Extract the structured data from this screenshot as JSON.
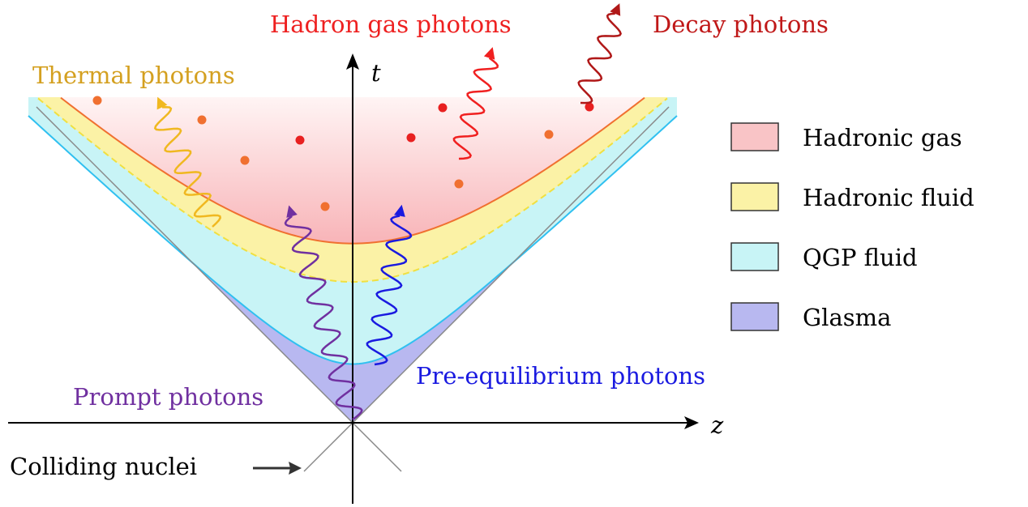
{
  "labels": {
    "thermal": "Thermal photons",
    "hadron_gas": "Hadron gas photons",
    "decay": "Decay photons",
    "prompt": "Prompt photons",
    "pre_equilibrium": "Pre-equilibrium photons",
    "colliding": "Colliding nuclei"
  },
  "axes": {
    "t": "t",
    "z": "z"
  },
  "legend": [
    "Hadronic gas",
    "Hadronic fluid",
    "QGP fluid",
    "Glasma"
  ]
}
